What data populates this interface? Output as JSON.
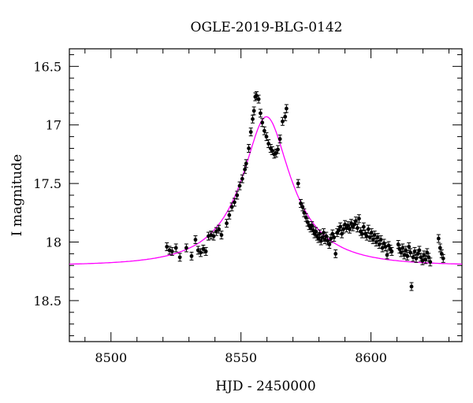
{
  "chart_data": {
    "type": "scatter",
    "title": "OGLE-2019-BLG-0142",
    "xlabel": "HJD - 2450000",
    "ylabel": "I magnitude",
    "xlim": [
      8484,
      8635
    ],
    "ylim": [
      18.85,
      16.35
    ],
    "y_inverted": true,
    "x_ticks": [
      8500,
      8550,
      8600
    ],
    "y_ticks": [
      16.5,
      17,
      17.5,
      18,
      18.5
    ],
    "x_tick_labels": [
      "8500",
      "8550",
      "8600"
    ],
    "y_tick_labels": [
      "16.5",
      "17",
      "17.5",
      "18",
      "18.5"
    ],
    "grid": false,
    "legend": "none",
    "model_color": "#ff00ff",
    "point_color": "#000000",
    "model": {
      "t0": 8559.8,
      "u0": 0.35,
      "tE": 26,
      "baseline_mag": 18.2
    },
    "series": [
      {
        "points": [
          [
            8521.5,
            18.04
          ],
          [
            8522.5,
            18.07
          ],
          [
            8523.5,
            18.08
          ],
          [
            8525.0,
            18.05
          ],
          [
            8526.5,
            18.13
          ],
          [
            8529.0,
            18.05
          ],
          [
            8531.0,
            18.12
          ],
          [
            8532.5,
            17.98
          ],
          [
            8533.5,
            18.07
          ],
          [
            8534.5,
            18.09
          ],
          [
            8535.5,
            18.06
          ],
          [
            8536.5,
            18.08
          ],
          [
            8537.5,
            17.95
          ],
          [
            8538.5,
            17.94
          ],
          [
            8539.5,
            17.95
          ],
          [
            8540.5,
            17.91
          ],
          [
            8541.5,
            17.89
          ],
          [
            8542.5,
            17.94
          ],
          [
            8544.5,
            17.84
          ],
          [
            8545.5,
            17.77
          ],
          [
            8546.5,
            17.7
          ],
          [
            8547.5,
            17.66
          ],
          [
            8548.5,
            17.6
          ],
          [
            8549.5,
            17.52
          ],
          [
            8550.5,
            17.46
          ],
          [
            8551.5,
            17.38
          ],
          [
            8552.0,
            17.33
          ],
          [
            8553.0,
            17.2
          ],
          [
            8553.8,
            17.06
          ],
          [
            8554.5,
            16.95
          ],
          [
            8555.0,
            16.88
          ],
          [
            8555.5,
            16.76
          ],
          [
            8556.0,
            16.75
          ],
          [
            8556.8,
            16.78
          ],
          [
            8557.5,
            16.9
          ],
          [
            8558.2,
            16.98
          ],
          [
            8559.0,
            17.05
          ],
          [
            8559.8,
            17.1
          ],
          [
            8560.6,
            17.16
          ],
          [
            8561.4,
            17.2
          ],
          [
            8562.0,
            17.22
          ],
          [
            8562.8,
            17.25
          ],
          [
            8563.5,
            17.24
          ],
          [
            8564.2,
            17.21
          ],
          [
            8565.0,
            17.12
          ],
          [
            8566.0,
            16.97
          ],
          [
            8567.0,
            16.93
          ],
          [
            8567.5,
            16.86
          ],
          [
            8572.0,
            17.5
          ],
          [
            8573.0,
            17.67
          ],
          [
            8573.7,
            17.7
          ],
          [
            8574.3,
            17.75
          ],
          [
            8575.0,
            17.79
          ],
          [
            8575.6,
            17.83
          ],
          [
            8576.2,
            17.86
          ],
          [
            8576.8,
            17.88
          ],
          [
            8577.3,
            17.86
          ],
          [
            8577.8,
            17.9
          ],
          [
            8578.3,
            17.93
          ],
          [
            8578.8,
            17.91
          ],
          [
            8579.3,
            17.95
          ],
          [
            8579.8,
            17.97
          ],
          [
            8580.3,
            17.93
          ],
          [
            8580.8,
            17.99
          ],
          [
            8581.3,
            17.96
          ],
          [
            8581.8,
            17.92
          ],
          [
            8582.3,
            17.98
          ],
          [
            8582.8,
            17.95
          ],
          [
            8583.3,
            17.99
          ],
          [
            8584.0,
            18.02
          ],
          [
            8584.6,
            17.97
          ],
          [
            8585.2,
            17.93
          ],
          [
            8585.8,
            17.96
          ],
          [
            8586.4,
            18.1
          ],
          [
            8587.0,
            17.92
          ],
          [
            8587.6,
            17.9
          ],
          [
            8588.2,
            17.87
          ],
          [
            8588.8,
            17.93
          ],
          [
            8589.4,
            17.89
          ],
          [
            8590.0,
            17.85
          ],
          [
            8590.6,
            17.88
          ],
          [
            8591.2,
            17.86
          ],
          [
            8591.8,
            17.89
          ],
          [
            8592.4,
            17.84
          ],
          [
            8593.0,
            17.87
          ],
          [
            8593.6,
            17.85
          ],
          [
            8594.2,
            17.82
          ],
          [
            8594.8,
            17.88
          ],
          [
            8595.4,
            17.8
          ],
          [
            8596.0,
            17.91
          ],
          [
            8596.6,
            17.93
          ],
          [
            8597.2,
            17.87
          ],
          [
            8597.8,
            17.93
          ],
          [
            8598.4,
            17.95
          ],
          [
            8599.0,
            17.89
          ],
          [
            8599.6,
            17.96
          ],
          [
            8600.2,
            17.92
          ],
          [
            8600.8,
            17.98
          ],
          [
            8601.4,
            17.94
          ],
          [
            8602.0,
            18.0
          ],
          [
            8602.6,
            17.96
          ],
          [
            8603.2,
            18.02
          ],
          [
            8603.8,
            17.98
          ],
          [
            8604.4,
            18.05
          ],
          [
            8605.0,
            18.01
          ],
          [
            8605.6,
            18.04
          ],
          [
            8606.2,
            18.11
          ],
          [
            8606.8,
            18.03
          ],
          [
            8607.4,
            18.06
          ],
          [
            8608.0,
            18.08
          ],
          [
            8610.5,
            18.02
          ],
          [
            8611.0,
            18.06
          ],
          [
            8611.6,
            18.09
          ],
          [
            8612.2,
            18.05
          ],
          [
            8612.8,
            18.11
          ],
          [
            8613.4,
            18.07
          ],
          [
            8614.0,
            18.12
          ],
          [
            8614.6,
            18.04
          ],
          [
            8615.2,
            18.09
          ],
          [
            8615.6,
            18.38
          ],
          [
            8616.2,
            18.13
          ],
          [
            8616.8,
            18.08
          ],
          [
            8617.4,
            18.14
          ],
          [
            8618.0,
            18.1
          ],
          [
            8618.6,
            18.07
          ],
          [
            8619.2,
            18.13
          ],
          [
            8619.8,
            18.16
          ],
          [
            8620.4,
            18.11
          ],
          [
            8621.0,
            18.15
          ],
          [
            8621.6,
            18.09
          ],
          [
            8622.2,
            18.13
          ],
          [
            8622.8,
            18.17
          ],
          [
            8626.0,
            17.97
          ],
          [
            8626.6,
            18.05
          ],
          [
            8627.2,
            18.1
          ],
          [
            8627.8,
            18.14
          ]
        ]
      }
    ]
  }
}
